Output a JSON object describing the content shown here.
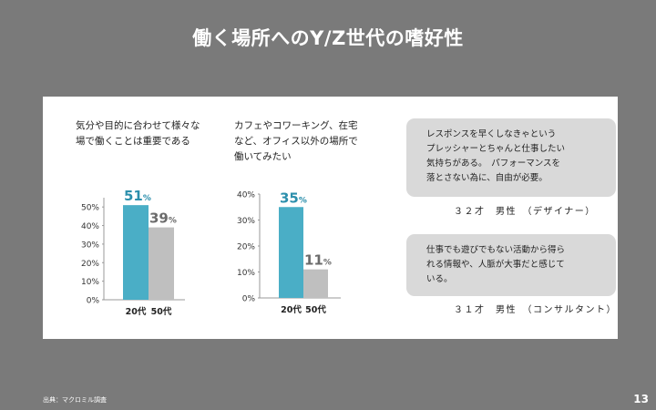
{
  "title": "働く場所へのY/Z世代の嗜好性",
  "captions": {
    "left": "気分や目的に合わせて様々な\n場で働くことは重要である",
    "middle": "カフェやコワーキング、在宅\nなど、オフィス以外の場所で\n働いてみたい"
  },
  "chart_data": [
    {
      "type": "bar",
      "categories": [
        "20代",
        "50代"
      ],
      "values": [
        51,
        39
      ],
      "value_labels": [
        "51",
        "39"
      ],
      "value_suffix": "%",
      "yticks": [
        "0%",
        "10%",
        "20%",
        "30%",
        "40%",
        "50%"
      ],
      "ylim": [
        0,
        55
      ],
      "colors": [
        "#4aaec6",
        "#bfbfbf"
      ],
      "label_colors": [
        "#2c8fac",
        "#6b6b6b"
      ]
    },
    {
      "type": "bar",
      "categories": [
        "20代",
        "50代"
      ],
      "values": [
        35,
        11
      ],
      "value_labels": [
        "35",
        "11"
      ],
      "value_suffix": "%",
      "yticks": [
        "0%",
        "10%",
        "20%",
        "30%",
        "40%"
      ],
      "ylim": [
        0,
        40
      ],
      "colors": [
        "#4aaec6",
        "#bfbfbf"
      ],
      "label_colors": [
        "#2c8fac",
        "#6b6b6b"
      ]
    }
  ],
  "quotes": [
    {
      "text": "レスポンスを早くしなきゃという\nプレッシャーとちゃんと仕事したい\n気持ちがある。　パフォーマンスを\n落とさない為に、自由が必要。",
      "attribution": "３２才　男性　（デザイナー）"
    },
    {
      "text": "仕事でも遊びでもない活動から得ら\nれる情報や、人脈が大事だと感じて\nいる。",
      "attribution": "３１才　男性　（コンサルタント）"
    }
  ],
  "source": "出典：マクロミル調査",
  "page_number": "13"
}
